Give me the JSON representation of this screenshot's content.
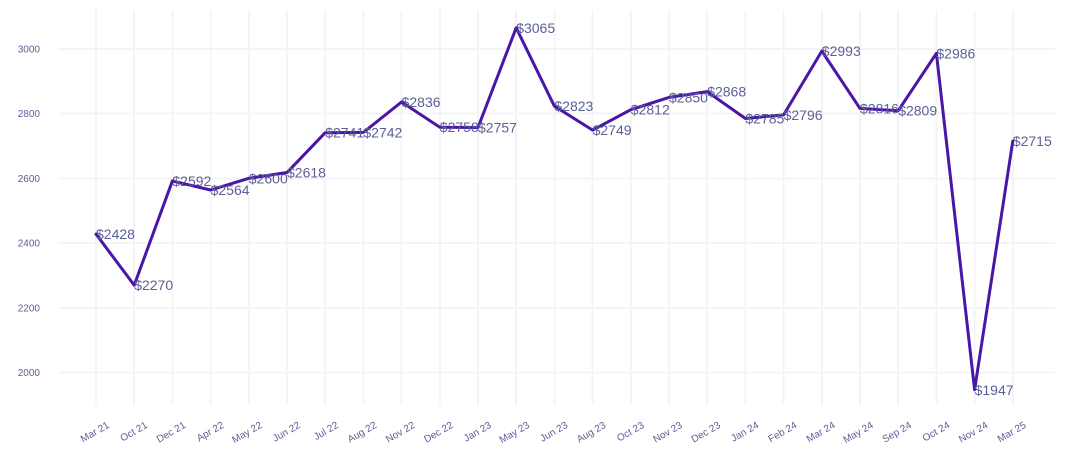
{
  "chart_data": {
    "type": "line",
    "title": "",
    "xlabel": "",
    "ylabel": "",
    "ylim": [
      1900,
      3120
    ],
    "yticks": [
      2000,
      2200,
      2400,
      2600,
      2800,
      3000
    ],
    "categories": [
      "Mar 21",
      "Oct 21",
      "Dec 21",
      "Apr 22",
      "May 22",
      "Jun 22",
      "Jul 22",
      "Aug 22",
      "Nov 22",
      "Dec 22",
      "Jan 23",
      "May 23",
      "Jun 23",
      "Aug 23",
      "Oct 23",
      "Nov 23",
      "Dec 23",
      "Jan 24",
      "Feb 24",
      "Mar 24",
      "May 24",
      "Sep 24",
      "Oct 24",
      "Nov 24",
      "Mar 25"
    ],
    "values": [
      2428,
      2270,
      2592,
      2564,
      2600,
      2618,
      2741,
      2742,
      2836,
      2758,
      2757,
      3065,
      2823,
      2749,
      2812,
      2850,
      2868,
      2785,
      2796,
      2993,
      2816,
      2809,
      2986,
      1947,
      2715
    ],
    "data_labels": [
      "$2428",
      "$2270",
      "$2592",
      "$2564",
      "$2600",
      "$2618",
      "$2741",
      "$2742",
      "$2836",
      "$2758",
      "$2757",
      "$3065",
      "$2823",
      "$2749",
      "$2812",
      "$2850",
      "$2868",
      "$2785",
      "$2796",
      "$2993",
      "$2816",
      "$2809",
      "$2986",
      "$1947",
      "$2715"
    ],
    "grid": true,
    "legend": "none",
    "colors": {
      "line": "#4a16a8",
      "label": "#5b5f97",
      "grid": "#f4f4f7"
    }
  }
}
